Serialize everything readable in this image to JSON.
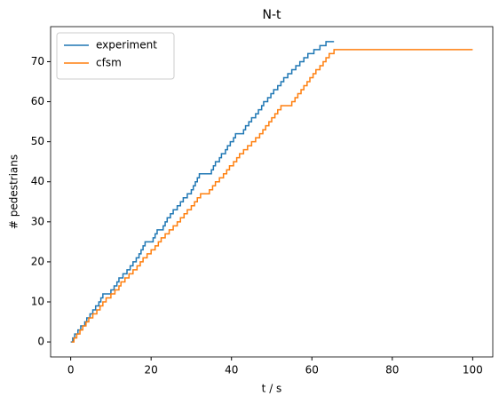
{
  "chart_data": {
    "type": "line",
    "title": "N-t",
    "x_label": "t / s",
    "y_label": "# pedestrians",
    "xlim": [
      -5,
      105
    ],
    "ylim": [
      -3.75,
      78.75
    ],
    "xticks": [
      0,
      20,
      40,
      60,
      80,
      100
    ],
    "yticks": [
      0,
      10,
      20,
      30,
      40,
      50,
      60,
      70
    ],
    "drawstyle": "steps-post",
    "legend": "upper left",
    "series": [
      {
        "name": "experiment",
        "color": "#1f77b4",
        "x": [
          0,
          0.5,
          1,
          1.8,
          2.5,
          3.5,
          4,
          4.8,
          5.5,
          6.2,
          7,
          7.5,
          8,
          10,
          10.8,
          11.5,
          12,
          13,
          14,
          14.8,
          15.5,
          16.3,
          17,
          17.5,
          18,
          18.5,
          20.5,
          21,
          21.5,
          23,
          23.5,
          24,
          24.8,
          25.5,
          26.5,
          27.3,
          28,
          29,
          30,
          30.5,
          31,
          31.5,
          32,
          35,
          35.5,
          36,
          37,
          37.5,
          38.5,
          39,
          39.7,
          40.5,
          41,
          43,
          43.5,
          44.3,
          45,
          46,
          46.7,
          47.5,
          48,
          49,
          49.8,
          50.5,
          51.5,
          52.3,
          53,
          54,
          55,
          56,
          57,
          58,
          59,
          60.5,
          62,
          63.5,
          65.5
        ],
        "values": [
          0,
          1,
          2,
          3,
          4,
          5,
          6,
          7,
          8,
          9,
          10,
          11,
          12,
          13,
          14,
          15,
          16,
          17,
          18,
          19,
          20,
          21,
          22,
          23,
          24,
          25,
          26,
          27,
          28,
          29,
          30,
          31,
          32,
          33,
          34,
          35,
          36,
          37,
          38,
          39,
          40,
          41,
          42,
          43,
          44,
          45,
          46,
          47,
          48,
          49,
          50,
          51,
          52,
          53,
          54,
          55,
          56,
          57,
          58,
          59,
          60,
          61,
          62,
          63,
          64,
          65,
          66,
          67,
          68,
          69,
          70,
          71,
          72,
          73,
          74,
          75,
          75
        ]
      },
      {
        "name": "cfsm",
        "color": "#ff7f0e",
        "x": [
          0.2,
          0.8,
          1.5,
          2.3,
          3,
          3.8,
          4.5,
          5.5,
          6.5,
          7.3,
          8,
          8.8,
          10,
          11,
          12,
          12.5,
          13.5,
          14.5,
          15.5,
          16.5,
          17.3,
          18,
          19,
          20,
          21,
          21.8,
          22.5,
          23.5,
          24.5,
          25.5,
          26.5,
          27.3,
          28.2,
          29,
          30,
          30.8,
          31.5,
          32.3,
          34.5,
          35.3,
          36,
          37,
          38,
          38.8,
          39.5,
          40.5,
          41.3,
          42,
          43,
          44,
          45,
          46,
          47,
          47.8,
          48.5,
          49.3,
          50,
          50.8,
          51.5,
          52.3,
          55,
          55.8,
          56.5,
          57.3,
          58,
          58.8,
          59.5,
          60.3,
          61,
          62,
          62.8,
          63.5,
          64.3,
          65.5,
          100
        ],
        "values": [
          0,
          1,
          2,
          3,
          4,
          5,
          6,
          7,
          8,
          9,
          10,
          11,
          12,
          13,
          14,
          15,
          16,
          17,
          18,
          19,
          20,
          21,
          22,
          23,
          24,
          25,
          26,
          27,
          28,
          29,
          30,
          31,
          32,
          33,
          34,
          35,
          36,
          37,
          38,
          39,
          40,
          41,
          42,
          43,
          44,
          45,
          46,
          47,
          48,
          49,
          50,
          51,
          52,
          53,
          54,
          55,
          56,
          57,
          58,
          59,
          60,
          61,
          62,
          63,
          64,
          65,
          66,
          67,
          68,
          69,
          70,
          71,
          72,
          73,
          73
        ]
      }
    ]
  }
}
